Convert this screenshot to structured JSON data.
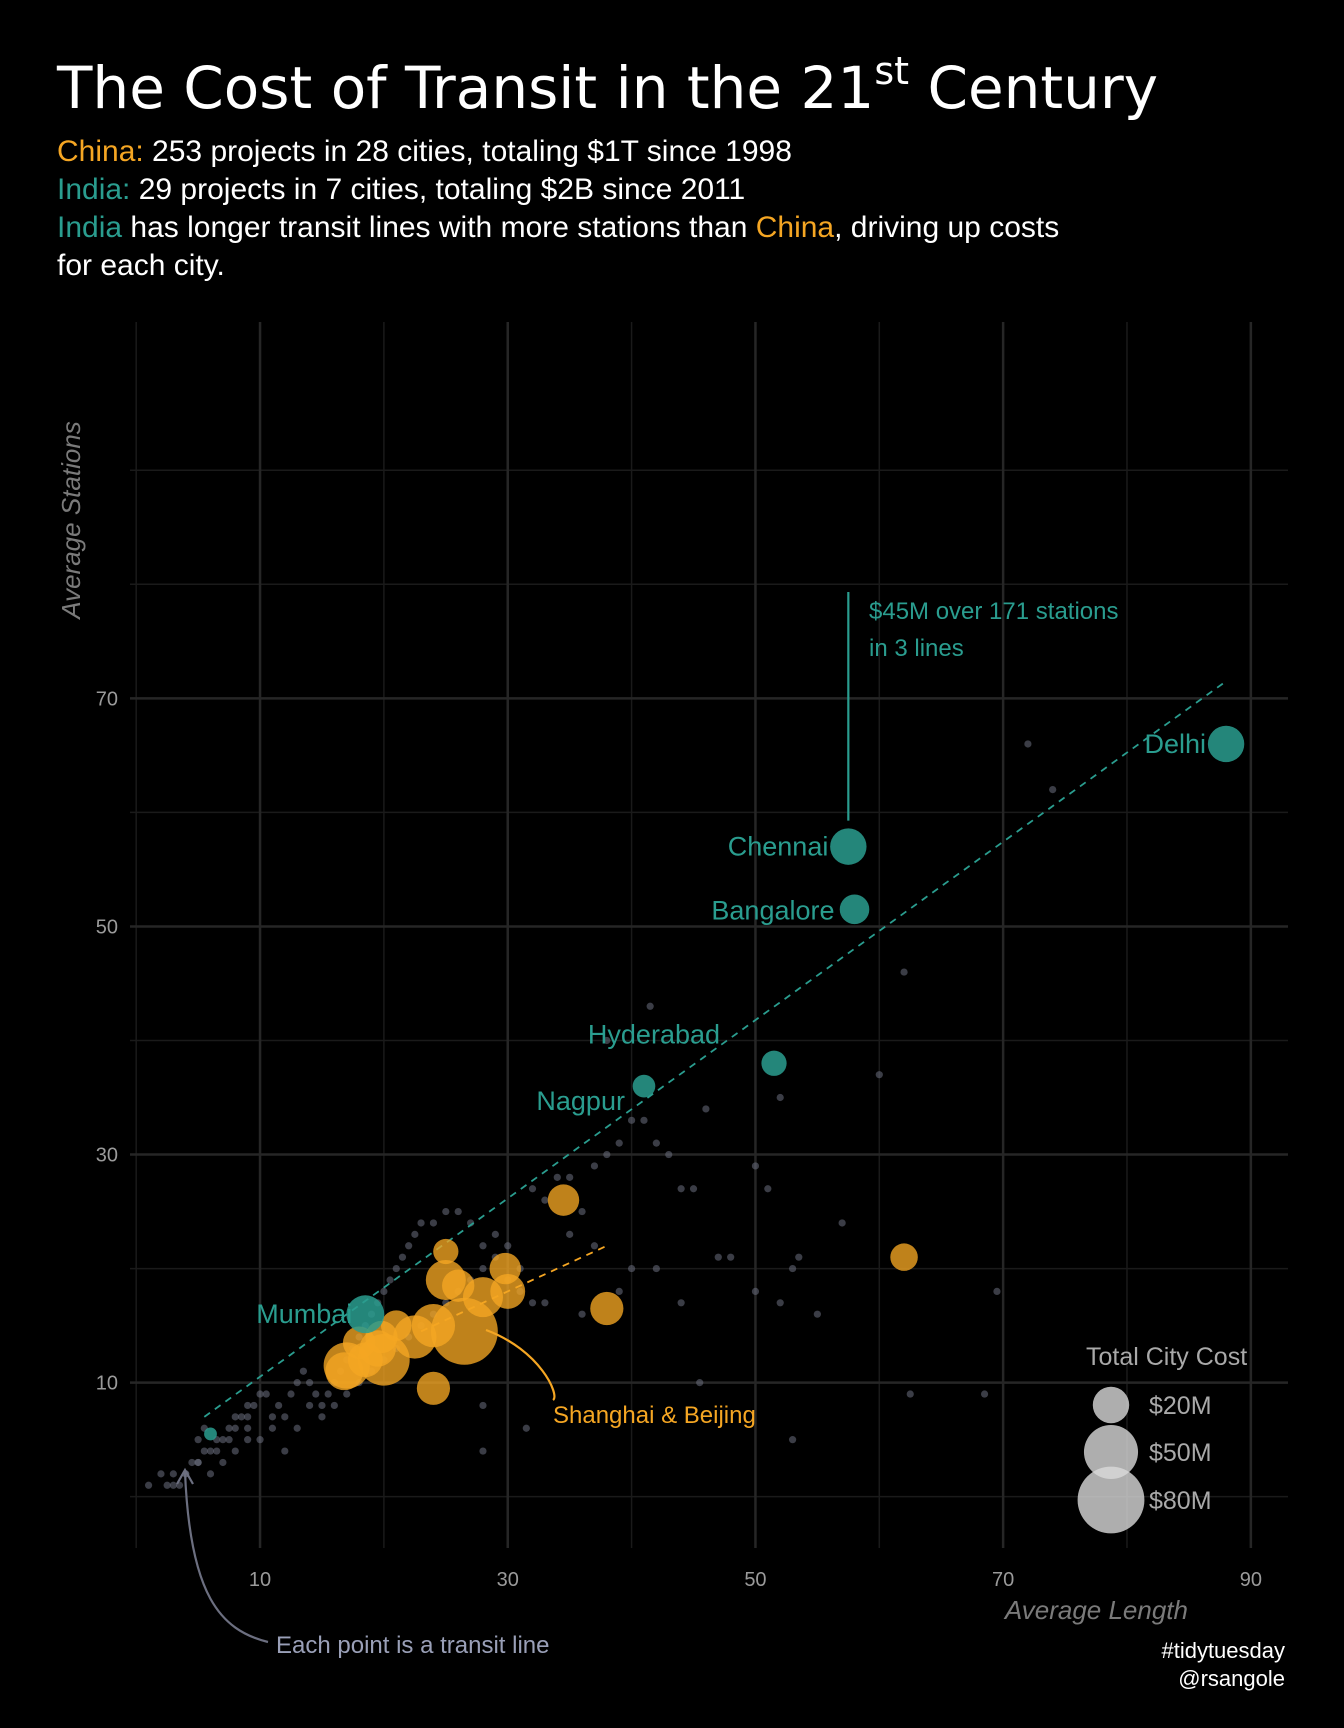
{
  "header": {
    "title_main": "The Cost of Transit in the 21",
    "title_sup": "st",
    "title_end": " Century",
    "line1_country": "China:",
    "line1_rest": " 253 projects in 28 cities, totaling $1T since 1998",
    "line2_country": "India:",
    "line2_rest": "  29 projects in 7 cities, totaling $2B since 2011",
    "line3_india": "India",
    "line3_mid": " has longer transit lines with more stations than ",
    "line3_china": "China",
    "line3_end": ", driving up costs",
    "line4": "for each city."
  },
  "colors": {
    "background": "#000000",
    "china": "#f5a623",
    "india": "#2a9d8f",
    "lines": "#6c6f80",
    "grid": "#262626",
    "text": "#ffffff"
  },
  "chart_data": {
    "type": "scatter",
    "title": "The Cost of Transit in the 21st Century",
    "xlabel": "Average Length",
    "ylabel": "Average Stations",
    "xlim": [
      -0.5,
      93
    ],
    "ylim": [
      -4.5,
      103
    ],
    "x_ticks": [
      10,
      30,
      50,
      70,
      90
    ],
    "y_ticks": [
      10,
      30,
      50,
      70
    ],
    "grid": true,
    "legend_position": "bottom-right",
    "legend": {
      "title": "Total City Cost",
      "items": [
        {
          "label": "$20M",
          "cost": 20
        },
        {
          "label": "$50M",
          "cost": 50
        },
        {
          "label": "$80M",
          "cost": 80
        }
      ]
    },
    "lines": [
      [
        1,
        1
      ],
      [
        2,
        2
      ],
      [
        3,
        2
      ],
      [
        2.5,
        1
      ],
      [
        3.5,
        1
      ],
      [
        4,
        2
      ],
      [
        4.5,
        3
      ],
      [
        5,
        3
      ],
      [
        5.5,
        4
      ],
      [
        6,
        4
      ],
      [
        6.5,
        4
      ],
      [
        5,
        5
      ],
      [
        5.5,
        6
      ],
      [
        7,
        5
      ],
      [
        7.5,
        6
      ],
      [
        8,
        7
      ],
      [
        8.5,
        7
      ],
      [
        9,
        7
      ],
      [
        9.5,
        8
      ],
      [
        10,
        9
      ],
      [
        10.5,
        9
      ],
      [
        11,
        7
      ],
      [
        11.5,
        8
      ],
      [
        12,
        7
      ],
      [
        12.5,
        9
      ],
      [
        13,
        10
      ],
      [
        13.5,
        11
      ],
      [
        14,
        10
      ],
      [
        14.5,
        9
      ],
      [
        15,
        8
      ],
      [
        15.5,
        9
      ],
      [
        16,
        10
      ],
      [
        16.5,
        11
      ],
      [
        17,
        12
      ],
      [
        17.5,
        13
      ],
      [
        18,
        14
      ],
      [
        18.5,
        15
      ],
      [
        19,
        16
      ],
      [
        19.5,
        17
      ],
      [
        20,
        18
      ],
      [
        20.5,
        19
      ],
      [
        21,
        20
      ],
      [
        21.5,
        21
      ],
      [
        22,
        22
      ],
      [
        22.5,
        23
      ],
      [
        23,
        24
      ],
      [
        24,
        24
      ],
      [
        25,
        25
      ],
      [
        26,
        25
      ],
      [
        27,
        24
      ],
      [
        28,
        22
      ],
      [
        29,
        23
      ],
      [
        30,
        22
      ],
      [
        31,
        20
      ],
      [
        32,
        27
      ],
      [
        33,
        26
      ],
      [
        34,
        28
      ],
      [
        35,
        28
      ],
      [
        36,
        25
      ],
      [
        37,
        29
      ],
      [
        38,
        30
      ],
      [
        39,
        31
      ],
      [
        40,
        33
      ],
      [
        41,
        33
      ],
      [
        42,
        31
      ],
      [
        43,
        30
      ],
      [
        44,
        27
      ],
      [
        45,
        27
      ],
      [
        38,
        40
      ],
      [
        41.5,
        43
      ],
      [
        46,
        34
      ],
      [
        48,
        21
      ],
      [
        50,
        29
      ],
      [
        51,
        27
      ],
      [
        52,
        35
      ],
      [
        53,
        20
      ],
      [
        53.5,
        21
      ],
      [
        57,
        24
      ],
      [
        60,
        37
      ],
      [
        62,
        46
      ],
      [
        69.5,
        18
      ],
      [
        72,
        66
      ],
      [
        74,
        62
      ],
      [
        68.5,
        9
      ],
      [
        62.5,
        9
      ],
      [
        53,
        5
      ],
      [
        45.5,
        10
      ],
      [
        31.5,
        6
      ],
      [
        28,
        4
      ],
      [
        28,
        8
      ],
      [
        9,
        8
      ],
      [
        11,
        6
      ],
      [
        12,
        4
      ],
      [
        9,
        5
      ],
      [
        8,
        4
      ],
      [
        7,
        3
      ],
      [
        6,
        2
      ],
      [
        5,
        3
      ],
      [
        4,
        2
      ],
      [
        3,
        1
      ],
      [
        9,
        6
      ],
      [
        10,
        5
      ],
      [
        8,
        6
      ],
      [
        7.5,
        5
      ],
      [
        6.5,
        5
      ],
      [
        13,
        6
      ],
      [
        16,
        8
      ],
      [
        15,
        7
      ],
      [
        14,
        8
      ],
      [
        17,
        9
      ],
      [
        18,
        10
      ],
      [
        19,
        11
      ],
      [
        20,
        12
      ],
      [
        21,
        13
      ],
      [
        22,
        14
      ],
      [
        23,
        15
      ],
      [
        24,
        16
      ],
      [
        25,
        17
      ],
      [
        26,
        18
      ],
      [
        27,
        19
      ],
      [
        28,
        20
      ],
      [
        29,
        21
      ],
      [
        30,
        19
      ],
      [
        31,
        18
      ],
      [
        32,
        17
      ],
      [
        33,
        17
      ],
      [
        36,
        16
      ],
      [
        39,
        18
      ],
      [
        40,
        20
      ],
      [
        35,
        23
      ],
      [
        37,
        22
      ],
      [
        42,
        20
      ],
      [
        44,
        17
      ],
      [
        47,
        21
      ],
      [
        50,
        18
      ],
      [
        52,
        17
      ],
      [
        55,
        16
      ]
    ],
    "china_cities": [
      [
        26.5,
        14.5,
        80
      ],
      [
        20,
        12,
        45
      ],
      [
        17,
        11.5,
        35
      ],
      [
        24,
        15,
        30
      ],
      [
        22.5,
        14,
        30
      ],
      [
        28,
        17.5,
        25
      ],
      [
        25,
        19,
        25
      ],
      [
        16.8,
        11,
        22
      ],
      [
        30,
        18,
        18
      ],
      [
        26,
        18.5,
        15
      ],
      [
        29.8,
        20,
        14
      ],
      [
        38,
        16.5,
        16
      ],
      [
        34.5,
        26,
        14
      ],
      [
        24,
        9.5,
        16
      ],
      [
        62,
        21,
        10
      ],
      [
        25,
        21.5,
        8
      ],
      [
        19.5,
        13,
        20
      ],
      [
        18,
        13.5,
        15
      ],
      [
        19.8,
        14,
        15
      ],
      [
        21,
        15,
        13
      ],
      [
        18.5,
        12,
        18
      ]
    ],
    "india_cities": [
      {
        "name": "Delhi",
        "x": 88,
        "y": 66,
        "cost": 20
      },
      {
        "name": "Chennai",
        "x": 57.5,
        "y": 57,
        "cost": 20
      },
      {
        "name": "Bangalore",
        "x": 58,
        "y": 51.5,
        "cost": 12
      },
      {
        "name": "Hyderabad",
        "x": 51.5,
        "y": 38,
        "cost": 8
      },
      {
        "name": "Nagpur",
        "x": 41,
        "y": 36,
        "cost": 6
      },
      {
        "name": "Mumbai",
        "x": 18.5,
        "y": 16,
        "cost": 22
      },
      {
        "name": "",
        "x": 6,
        "y": 5.5,
        "cost": 1
      }
    ],
    "india_trend": {
      "x": [
        5.5,
        88
      ],
      "y": [
        7,
        71.5
      ]
    },
    "china_trend": {
      "x": [
        23,
        38
      ],
      "y": [
        14.5,
        22
      ]
    },
    "annotations": {
      "chennai_note_line1": "$45M over 171 stations",
      "chennai_note_line2": "in 3 lines",
      "shanghai_beijing": "Shanghai & Beijing",
      "each_point": "Each point is a transit line"
    }
  },
  "credits": {
    "line1": "#tidytuesday",
    "line2": "@rsangole"
  }
}
